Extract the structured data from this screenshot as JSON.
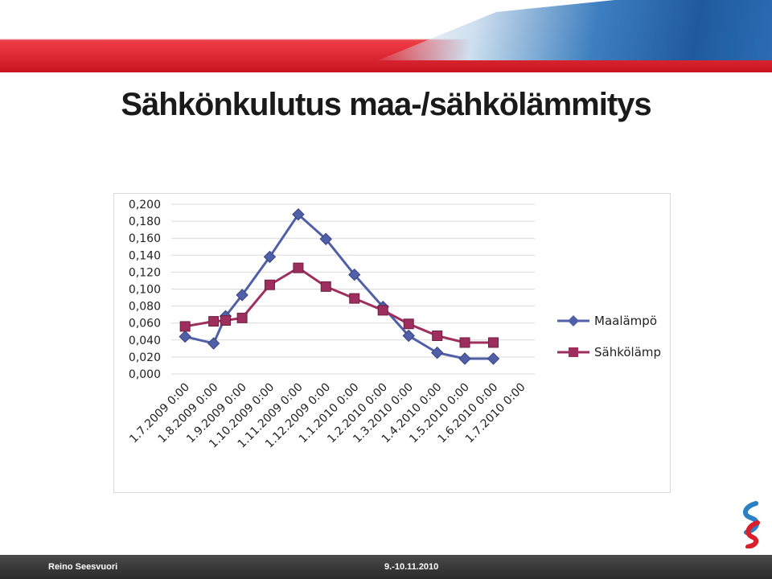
{
  "slide": {
    "title": "Sähkönkulutus maa-/sähkölämmitys",
    "footer_author": "Reino Seesvuori",
    "footer_date": "9.-10.11.2010"
  },
  "colors": {
    "banner_red": "#d91f2a",
    "series_maalampo": "#4f5fa8",
    "series_sahkolamp": "#9e2e5e"
  },
  "chart_data": {
    "type": "line",
    "categories": [
      "1.7.2009 0:00",
      "1.8.2009 0:00",
      "1.9.2009 0:00",
      "1.10.2009 0:00",
      "1.11.2009 0:00",
      "1.12.2009 0:00",
      "1.1.2010 0:00",
      "1.2.2010 0:00",
      "1.3.2010 0:00",
      "1.4.2010 0:00",
      "1.5.2010 0:00",
      "1.6.2010 0:00",
      "1.7.2010 0:00"
    ],
    "x": [
      "2009-07-01",
      "2009-08-01",
      "2009-08-14",
      "2009-09-01",
      "2009-10-01",
      "2009-11-01",
      "2009-12-01",
      "2010-01-01",
      "2010-02-01",
      "2010-03-01",
      "2010-04-01",
      "2010-05-01",
      "2010-06-01"
    ],
    "series": [
      {
        "name": "Maalämpö",
        "values": [
          0.044,
          0.036,
          0.068,
          0.093,
          0.138,
          0.188,
          0.159,
          0.117,
          0.079,
          0.045,
          0.025,
          0.018,
          0.018
        ],
        "marker": "diamond"
      },
      {
        "name": "Sähkölämp",
        "values": [
          0.056,
          0.062,
          0.063,
          0.066,
          0.105,
          0.125,
          0.103,
          0.089,
          0.075,
          0.059,
          0.045,
          0.037,
          0.037
        ],
        "marker": "square"
      }
    ],
    "ytick_labels": [
      "0,200",
      "0,180",
      "0,160",
      "0,140",
      "0,120",
      "0,100",
      "0,080",
      "0,060",
      "0,040",
      "0,020",
      "0,000"
    ],
    "ylim": [
      0,
      0.2
    ],
    "grid": true,
    "legend": "right"
  }
}
